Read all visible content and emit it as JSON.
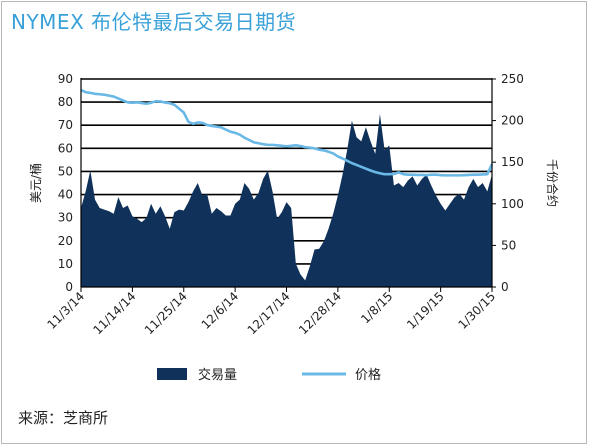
{
  "title": "NYMEX 布伦特最后交易日期货",
  "source": "来源：芝商所",
  "colors": {
    "title": "#3aa1d8",
    "volume": "#10325a",
    "price": "#6ab8e6",
    "grid": "#000000"
  },
  "chart_data": {
    "type": "area",
    "title": "NYMEX 布伦特最后交易日期货",
    "ylabel_left": "美元/桶",
    "ylabel_right": "千份合约",
    "ylim_left": [
      0,
      90
    ],
    "yticks_left": [
      "0",
      "10",
      "20",
      "30",
      "40",
      "50",
      "60",
      "70",
      "80",
      "90"
    ],
    "ylim_right": [
      0,
      250
    ],
    "yticks_right": [
      "0",
      "50",
      "100",
      "150",
      "200",
      "250"
    ],
    "x_tick_labels": [
      "11/3/14",
      "11/14/14",
      "11/25/14",
      "12/6/14",
      "12/17/14",
      "12/28/14",
      "1/8/15",
      "1/19/15",
      "1/30/15"
    ],
    "x_tick_days": [
      0,
      11,
      22,
      33,
      44,
      55,
      66,
      77,
      88
    ],
    "x_range_days": [
      0,
      88
    ],
    "grid_y": true,
    "legend_position": "bottom",
    "series": [
      {
        "name": "交易量",
        "type": "area",
        "axis": "right",
        "x_days": [
          0,
          1,
          2,
          3,
          4,
          5,
          6,
          7,
          8,
          9,
          10,
          11,
          12,
          13,
          14,
          15,
          16,
          17,
          18,
          19,
          20,
          21,
          22,
          23,
          24,
          25,
          26,
          27,
          28,
          29,
          30,
          31,
          32,
          33,
          34,
          35,
          36,
          37,
          38,
          39,
          40,
          41,
          42,
          43,
          44,
          45,
          46,
          47,
          48,
          49,
          50,
          51,
          52,
          53,
          54,
          55,
          56,
          57,
          58,
          59,
          60,
          61,
          62,
          63,
          64,
          65,
          66,
          67,
          68,
          69,
          70,
          71,
          72,
          73,
          74,
          75,
          76,
          77,
          78,
          79,
          80,
          81,
          82,
          83,
          84,
          85,
          86,
          87,
          88
        ],
        "values": [
          95,
          115,
          140,
          105,
          95,
          93,
          91,
          88,
          108,
          95,
          98,
          85,
          82,
          78,
          83,
          100,
          88,
          97,
          85,
          70,
          90,
          93,
          92,
          102,
          115,
          125,
          110,
          112,
          88,
          95,
          91,
          86,
          86,
          100,
          105,
          125,
          118,
          105,
          113,
          130,
          140,
          115,
          82,
          90,
          102,
          95,
          28,
          15,
          8,
          25,
          45,
          46,
          55,
          70,
          88,
          110,
          135,
          165,
          200,
          180,
          175,
          192,
          175,
          160,
          208,
          165,
          170,
          122,
          125,
          120,
          128,
          133,
          122,
          130,
          135,
          122,
          110,
          100,
          92,
          100,
          108,
          112,
          105,
          120,
          130,
          120,
          125,
          115,
          135
        ]
      },
      {
        "name": "价格",
        "type": "line",
        "axis": "left",
        "x_days": [
          0,
          1,
          2,
          3,
          4,
          5,
          6,
          7,
          8,
          9,
          10,
          11,
          12,
          13,
          14,
          15,
          16,
          17,
          18,
          19,
          20,
          21,
          22,
          23,
          24,
          25,
          26,
          27,
          28,
          29,
          30,
          31,
          32,
          33,
          34,
          35,
          36,
          37,
          38,
          39,
          40,
          41,
          42,
          43,
          44,
          45,
          46,
          47,
          48,
          49,
          50,
          51,
          52,
          53,
          54,
          55,
          56,
          57,
          58,
          59,
          60,
          61,
          62,
          63,
          64,
          65,
          66,
          67,
          68,
          69,
          70,
          71,
          72,
          73,
          74,
          75,
          76,
          77,
          78,
          79,
          80,
          81,
          82,
          83,
          84,
          85,
          86,
          87,
          88
        ],
        "values": [
          85.2,
          84.3,
          84,
          83.6,
          83.4,
          83.2,
          82.8,
          82.4,
          81.6,
          80.7,
          79.9,
          79.7,
          79.9,
          79.6,
          79.3,
          79.7,
          80.4,
          80.3,
          79.8,
          79.5,
          78.8,
          77.2,
          75.5,
          71.5,
          70.6,
          71.2,
          71,
          70.1,
          69.7,
          69.4,
          69.1,
          68.1,
          67.2,
          66.7,
          65.9,
          64.6,
          63.6,
          62.6,
          62.2,
          61.8,
          61.5,
          61.5,
          61.3,
          61.1,
          60.9,
          61.1,
          61.3,
          61,
          60.5,
          60.3,
          60,
          59.4,
          59.1,
          58.5,
          57.8,
          56.5,
          55.6,
          54.6,
          53.6,
          52.8,
          52,
          51.2,
          50.4,
          49.7,
          49.2,
          48.8,
          48.8,
          48.9,
          49.6,
          48.8,
          48.6,
          48.6,
          48.5,
          48.5,
          48.4,
          48.6,
          48.6,
          48.4,
          48.3,
          48.3,
          48.3,
          48.3,
          48.4,
          48.5,
          48.6,
          48.6,
          48.7,
          48.8,
          53.2
        ]
      }
    ]
  }
}
